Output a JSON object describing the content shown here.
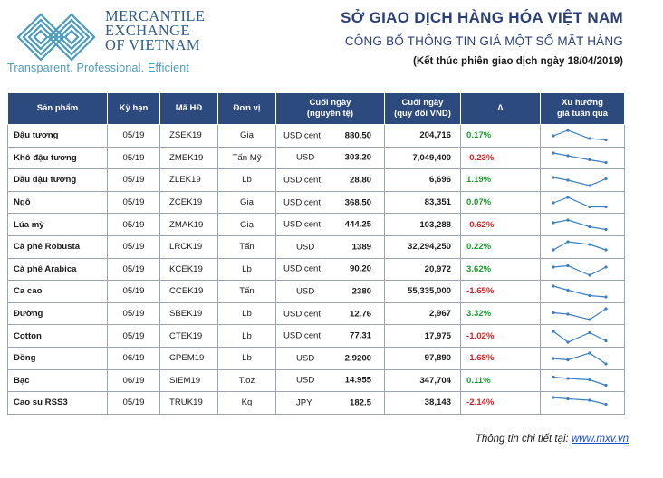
{
  "header": {
    "logo_lines": [
      "MERCANTILE",
      "EXCHANGE",
      "OF VIETNAM"
    ],
    "slogan": "Transparent. Professional. Efficient",
    "title": "SỞ GIAO DỊCH HÀNG HÓA VIỆT NAM",
    "subtitle": "CÔNG BỐ THÔNG TIN GIÁ MỘT SỐ MẶT HÀNG",
    "note": "(Kết thúc phiên giao dịch ngày 18/04/2019)"
  },
  "colors": {
    "header_bg": "#2c4a7d",
    "positive": "#1e9b2e",
    "negative": "#d42020",
    "spark": "#3a7fc4"
  },
  "table": {
    "columns": [
      "Sản phẩm",
      "Kỳ hạn",
      "Mã HĐ",
      "Đơn vị",
      "Cuối ngày\n(nguyên tệ)",
      "Cuối ngày\n(quy đổi VND)",
      "∆",
      "Xu hướng\ngiá tuần qua"
    ],
    "rows": [
      {
        "product": "Đậu tương",
        "term": "05/19",
        "code": "ZSEK19",
        "unit": "Giạ",
        "currency": "USD cent",
        "close": "880.50",
        "close_vnd": "204,716",
        "change": "0.17%",
        "dir": "pos",
        "trend": [
          3,
          5,
          2,
          1.5
        ]
      },
      {
        "product": "Khô đậu tương",
        "term": "05/19",
        "code": "ZMEK19",
        "unit": "Tấn Mỹ",
        "currency": "USD",
        "close": "303.20",
        "close_vnd": "7,049,400",
        "change": "-0.23%",
        "dir": "neg",
        "trend": [
          5,
          4,
          2.5,
          1.5
        ]
      },
      {
        "product": "Dầu đậu tương",
        "term": "05/19",
        "code": "ZLEK19",
        "unit": "Lb",
        "currency": "USD cent",
        "close": "28.80",
        "close_vnd": "6,696",
        "change": "1.19%",
        "dir": "pos",
        "trend": [
          4,
          3,
          1,
          3.5
        ]
      },
      {
        "product": "Ngô",
        "term": "05/19",
        "code": "ZCEK19",
        "unit": "Giạ",
        "currency": "USD cent",
        "close": "368.50",
        "close_vnd": "83,351",
        "change": "0.07%",
        "dir": "pos",
        "trend": [
          3,
          5,
          1.5,
          1.5
        ]
      },
      {
        "product": "Lúa mỳ",
        "term": "05/19",
        "code": "ZMAK19",
        "unit": "Giạ",
        "currency": "USD cent",
        "close": "444.25",
        "close_vnd": "103,288",
        "change": "-0.62%",
        "dir": "neg",
        "trend": [
          4,
          5,
          2.5,
          1.5
        ]
      },
      {
        "product": "Cà phê Robusta",
        "term": "05/19",
        "code": "LRCK19",
        "unit": "Tấn",
        "currency": "USD",
        "close": "1389",
        "close_vnd": "32,294,250",
        "change": "0.22%",
        "dir": "pos",
        "trend": [
          2,
          5,
          4,
          2
        ]
      },
      {
        "product": "Cà phê Arabica",
        "term": "05/19",
        "code": "KCEK19",
        "unit": "Lb",
        "currency": "USD cent",
        "close": "90.20",
        "close_vnd": "20,972",
        "change": "3.62%",
        "dir": "pos",
        "trend": [
          4,
          4.5,
          1,
          4
        ]
      },
      {
        "product": "Ca cao",
        "term": "05/19",
        "code": "CCEK19",
        "unit": "Tấn",
        "currency": "USD",
        "close": "2380",
        "close_vnd": "55,335,000",
        "change": "-1.65%",
        "dir": "neg",
        "trend": [
          5,
          3.5,
          1.5,
          1
        ]
      },
      {
        "product": "Đường",
        "term": "05/19",
        "code": "SBEK19",
        "unit": "Lb",
        "currency": "USD cent",
        "close": "12.76",
        "close_vnd": "2,967",
        "change": "3.32%",
        "dir": "pos",
        "trend": [
          3.5,
          3,
          1,
          5
        ]
      },
      {
        "product": "Cotton",
        "term": "05/19",
        "code": "CTEK19",
        "unit": "Lb",
        "currency": "USD cent",
        "close": "77.31",
        "close_vnd": "17,975",
        "change": "-1.02%",
        "dir": "neg",
        "trend": [
          5,
          1,
          4.5,
          1.5
        ]
      },
      {
        "product": "Đồng",
        "term": "06/19",
        "code": "CPEM19",
        "unit": "Lb",
        "currency": "USD",
        "close": "2.9200",
        "close_vnd": "97,890",
        "change": "-1.68%",
        "dir": "neg",
        "trend": [
          3,
          2.5,
          5,
          1
        ]
      },
      {
        "product": "Bạc",
        "term": "06/19",
        "code": "SIEM19",
        "unit": "T.oz",
        "currency": "USD",
        "close": "14.955",
        "close_vnd": "347,704",
        "change": "0.11%",
        "dir": "pos",
        "trend": [
          4.5,
          4,
          3.5,
          1.5
        ]
      },
      {
        "product": "Cao su RSS3",
        "term": "05/19",
        "code": "TRUK19",
        "unit": "Kg",
        "currency": "JPY",
        "close": "182.5",
        "close_vnd": "38,143",
        "change": "-2.14%",
        "dir": "neg",
        "trend": [
          5,
          4.5,
          4,
          2.5
        ]
      }
    ]
  },
  "footer": {
    "label": "Thông tin chi tiết tại: ",
    "link": "www.mxv.vn"
  }
}
